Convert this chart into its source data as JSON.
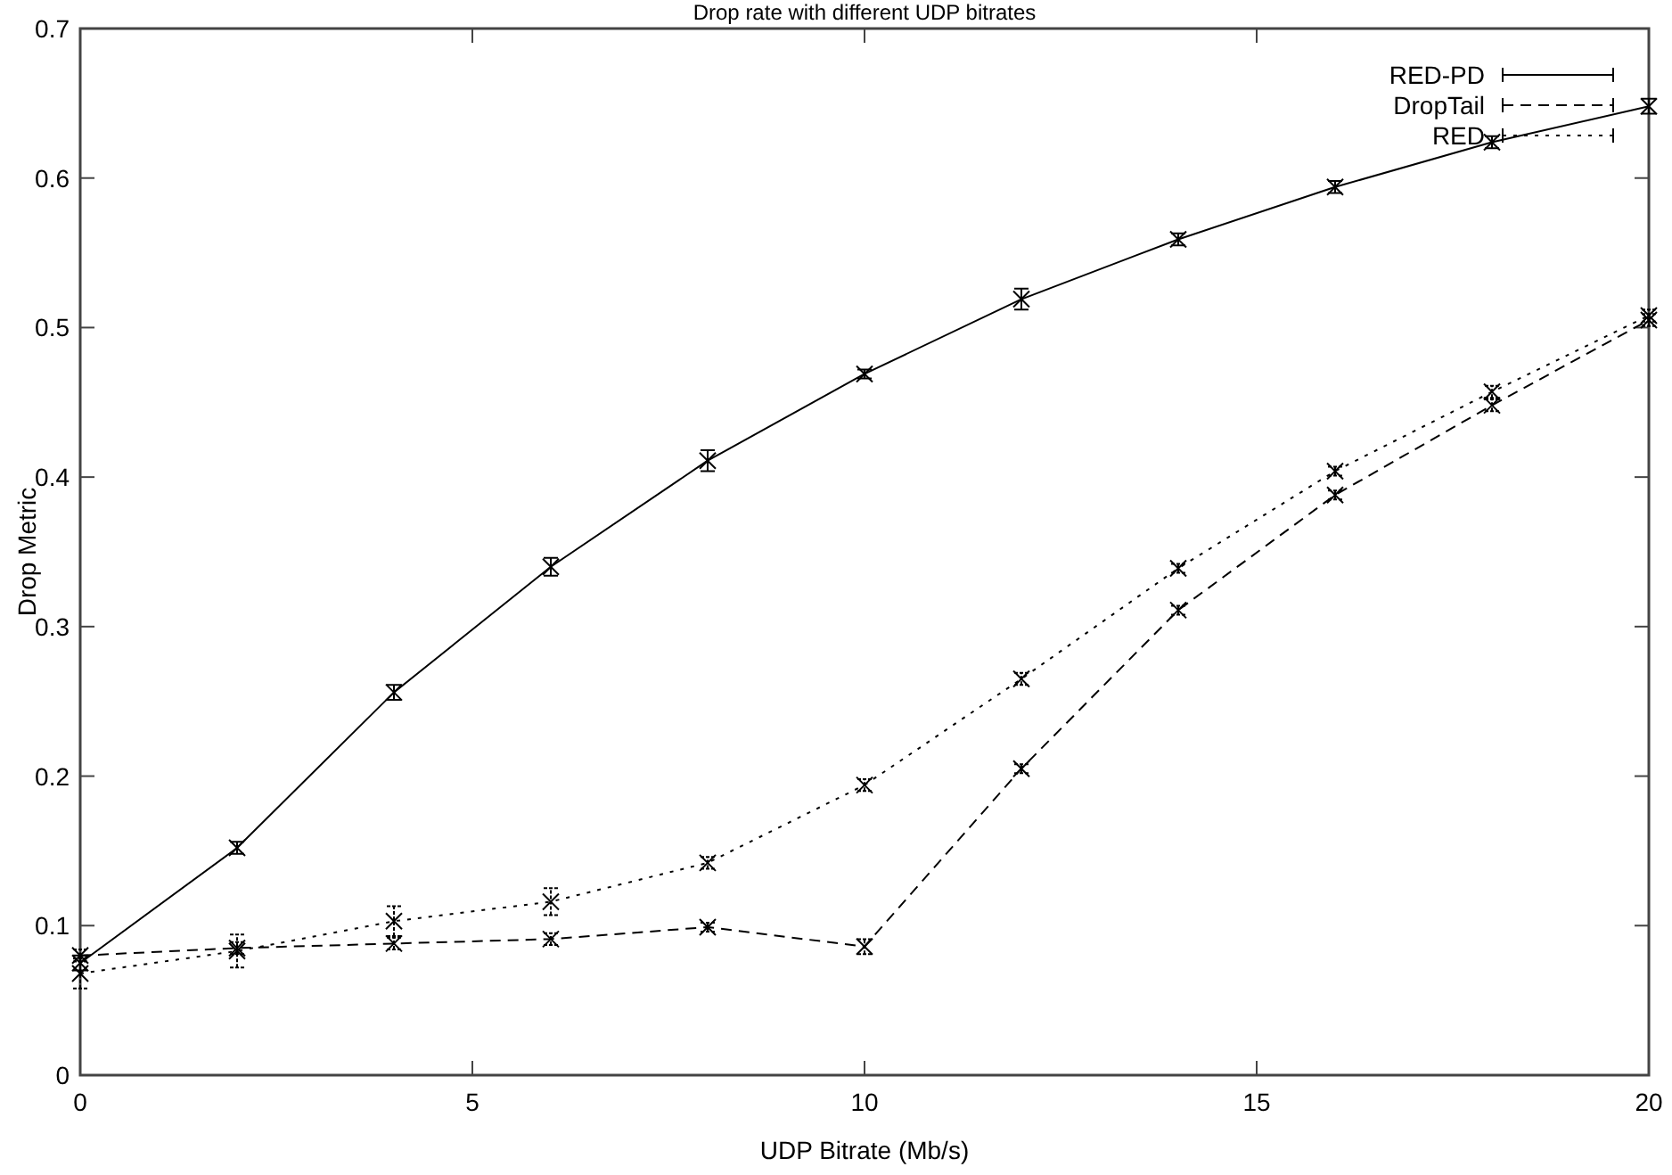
{
  "chart_data": {
    "type": "line",
    "title": "Drop rate with different UDP bitrates",
    "xlabel": "UDP Bitrate (Mb/s)",
    "ylabel": "Drop Metric",
    "x": [
      0,
      2,
      4,
      6,
      8,
      10,
      12,
      14,
      16,
      18,
      20
    ],
    "xlim": [
      0,
      20
    ],
    "xticks": [
      0,
      5,
      10,
      15,
      20
    ],
    "ylim": [
      0,
      0.7
    ],
    "yticks": [
      0,
      0.1,
      0.2,
      0.3,
      0.4,
      0.5,
      0.6,
      0.7
    ],
    "grid": false,
    "legend": "top right",
    "series": [
      {
        "name": "RED-PD",
        "color": "#000000",
        "line_style": "solid",
        "marker": "cross",
        "values": [
          0.075,
          0.152,
          0.256,
          0.34,
          0.411,
          0.469,
          0.519,
          0.559,
          0.594,
          0.624,
          0.648
        ],
        "errors": [
          0.005,
          0.004,
          0.005,
          0.006,
          0.007,
          0.003,
          0.007,
          0.004,
          0.004,
          0.004,
          0.005
        ]
      },
      {
        "name": "DropTail",
        "color": "#000000",
        "line_style": "dashed",
        "marker": "cross",
        "values": [
          0.08,
          0.085,
          0.088,
          0.091,
          0.099,
          0.086,
          0.205,
          0.311,
          0.388,
          0.448,
          0.505
        ],
        "errors": [
          0.004,
          0.004,
          0.004,
          0.004,
          0.003,
          0.005,
          0.003,
          0.003,
          0.003,
          0.004,
          0.004
        ]
      },
      {
        "name": "RED",
        "color": "#000000",
        "line_style": "dotted",
        "marker": "cross",
        "values": [
          0.068,
          0.083,
          0.103,
          0.116,
          0.142,
          0.194,
          0.265,
          0.339,
          0.404,
          0.457,
          0.508
        ],
        "errors": [
          0.01,
          0.011,
          0.01,
          0.009,
          0.004,
          0.004,
          0.004,
          0.003,
          0.003,
          0.004,
          0.004
        ]
      }
    ]
  }
}
